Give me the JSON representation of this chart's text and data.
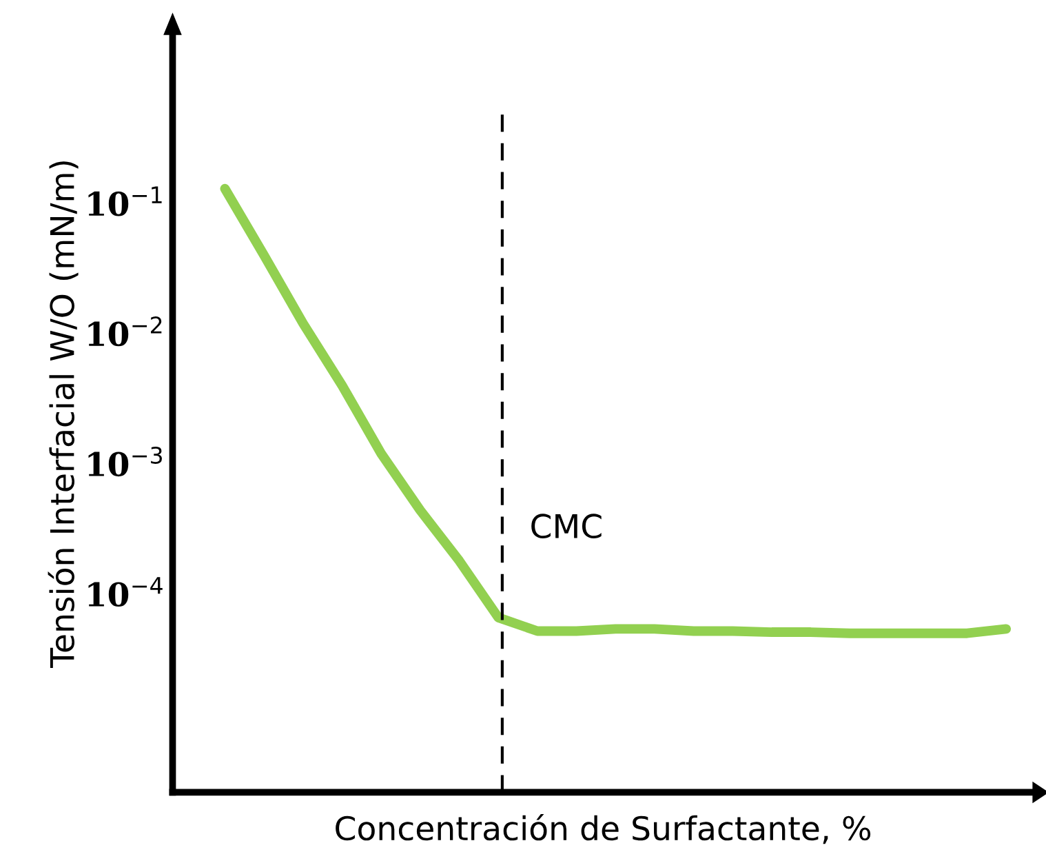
{
  "chart_data": {
    "type": "line",
    "xlabel": "Concentración de Surfactante, %",
    "ylabel": "Tensión Interfacial W/O (mN/m)",
    "categories": [
      null,
      null,
      null,
      null,
      null,
      null,
      null,
      null,
      null,
      null,
      null,
      null,
      null,
      null,
      null,
      null,
      null,
      null,
      null,
      null,
      null
    ],
    "series": [
      {
        "color": "#92d050",
        "values": [
          0.13,
          0.04,
          0.012,
          0.004,
          0.0012,
          0.00044,
          0.00018,
          6.6e-05,
          5.2e-05,
          5.2e-05,
          5.4e-05,
          5.4e-05,
          5.2e-05,
          5.2e-05,
          5.1e-05,
          5.1e-05,
          5e-05,
          5e-05,
          5e-05,
          5e-05,
          5.4e-05
        ]
      }
    ],
    "log": "y",
    "ylim": [
      3e-06,
      2
    ],
    "yticks": [
      {
        "value": 0.1,
        "label": "10$^{−1}$"
      },
      {
        "value": 0.01,
        "label": "10$^{−2}$"
      },
      {
        "value": 0.001,
        "label": "10$^{−3}$"
      },
      {
        "value": 0.0001,
        "label": "10$^{−4}$"
      }
    ],
    "annotations": [
      "CMC"
    ],
    "grid": false,
    "legend": false,
    "marker": "none",
    "line_style": "solid"
  }
}
